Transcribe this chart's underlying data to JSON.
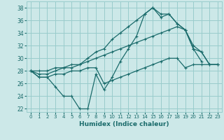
{
  "xlabel": "Humidex (Indice chaleur)",
  "xlim": [
    -0.5,
    23.5
  ],
  "ylim": [
    21.5,
    39
  ],
  "yticks": [
    22,
    24,
    26,
    28,
    30,
    32,
    34,
    36,
    38
  ],
  "xticks": [
    0,
    1,
    2,
    3,
    4,
    5,
    6,
    7,
    8,
    9,
    10,
    11,
    12,
    13,
    14,
    15,
    16,
    17,
    18,
    19,
    20,
    21,
    22,
    23
  ],
  "bg_color": "#cce8e8",
  "grid_color": "#99cccc",
  "line_color": "#1a6b6b",
  "lines": [
    {
      "x": [
        0,
        1,
        2,
        3,
        4,
        5,
        6,
        7,
        8,
        9,
        10,
        11,
        12,
        13,
        14,
        15,
        16,
        17,
        18,
        19,
        20,
        21
      ],
      "y": [
        28,
        27,
        27,
        25.5,
        24,
        24,
        22,
        22,
        27.5,
        25,
        27,
        29.5,
        31.5,
        33.5,
        37,
        38,
        36.5,
        37,
        35.5,
        34.5,
        31.5,
        29.5
      ]
    },
    {
      "x": [
        0,
        1,
        2,
        3,
        4,
        5,
        6,
        7,
        8,
        9,
        10,
        11,
        12,
        13,
        14,
        15,
        16,
        17,
        18,
        19,
        20,
        21,
        22,
        23
      ],
      "y": [
        28,
        27.5,
        27.5,
        28,
        28.5,
        28.5,
        29,
        30,
        31,
        31.5,
        33,
        34,
        35,
        36,
        37,
        38,
        37,
        37,
        35.5,
        34.5,
        31.5,
        31,
        29,
        29
      ]
    },
    {
      "x": [
        0,
        1,
        2,
        3,
        4,
        5,
        6,
        7,
        8,
        9,
        10,
        11,
        12,
        13,
        14,
        15,
        16,
        17,
        18,
        19,
        20,
        21,
        22,
        23
      ],
      "y": [
        28,
        28,
        28,
        28.5,
        28.5,
        29,
        29,
        29.5,
        30,
        30.5,
        31,
        31.5,
        32,
        32.5,
        33,
        33.5,
        34,
        34.5,
        35,
        34.5,
        32,
        31,
        29,
        29
      ]
    },
    {
      "x": [
        0,
        1,
        2,
        3,
        4,
        5,
        6,
        7,
        8,
        9,
        10,
        11,
        12,
        13,
        14,
        15,
        16,
        17,
        18,
        19,
        20,
        21,
        22,
        23
      ],
      "y": [
        28,
        27,
        27,
        27.5,
        27.5,
        28,
        28,
        28.5,
        28.5,
        26,
        26.5,
        27,
        27.5,
        28,
        28.5,
        29,
        29.5,
        30,
        30,
        28.5,
        29,
        29,
        29,
        29
      ]
    }
  ]
}
